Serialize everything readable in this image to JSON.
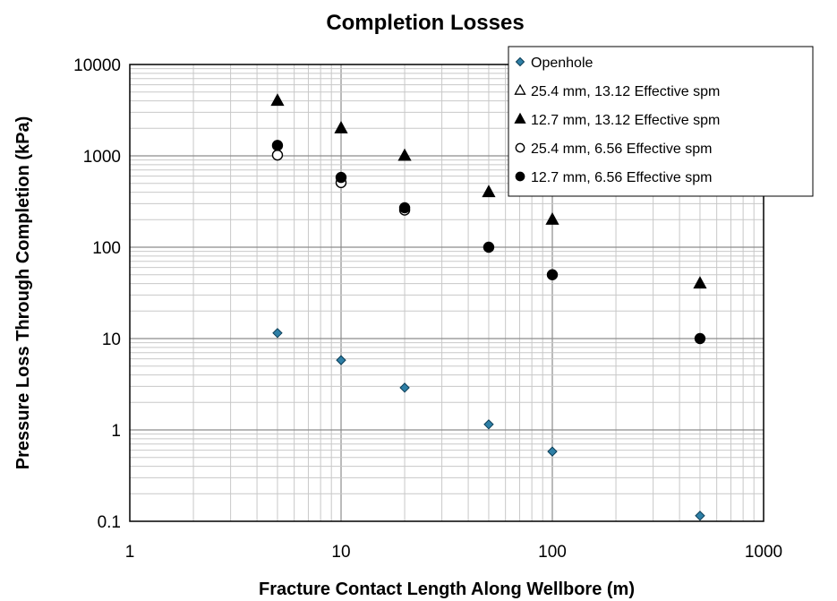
{
  "chart_data": {
    "type": "scatter",
    "title": "Completion Losses",
    "xlabel": "Fracture Contact Length Along Wellbore (m)",
    "ylabel": "Pressure Loss Through Completion (kPa)",
    "x_scale": "log",
    "y_scale": "log",
    "xlim": [
      1,
      1000
    ],
    "ylim": [
      0.1,
      10000
    ],
    "x_ticks": [
      "1",
      "10",
      "100",
      "1000"
    ],
    "y_ticks": [
      "0.1",
      "1",
      "10",
      "100",
      "1000",
      "10000"
    ],
    "grid": true,
    "legend_position": "top-right",
    "series": [
      {
        "name": "Openhole",
        "marker": "diamond",
        "color": "#2e7fa6",
        "x": [
          5,
          10,
          20,
          50,
          100,
          500
        ],
        "y": [
          11.5,
          5.8,
          2.9,
          1.15,
          0.58,
          0.115
        ]
      },
      {
        "name": "25.4 mm, 13.12 Effective spm",
        "marker": "triangle-open",
        "color": "#000000",
        "x": [],
        "y": []
      },
      {
        "name": "12.7 mm, 13.12 Effective spm",
        "marker": "triangle-filled",
        "color": "#000000",
        "x": [
          5,
          10,
          20,
          50,
          100,
          500
        ],
        "y": [
          4000,
          2000,
          1000,
          400,
          200,
          40
        ]
      },
      {
        "name": "25.4 mm, 6.56 Effective spm",
        "marker": "circle-open",
        "color": "#000000",
        "x": [
          5,
          10,
          20
        ],
        "y": [
          1020,
          510,
          255
        ]
      },
      {
        "name": "12.7 mm, 6.56 Effective spm",
        "marker": "circle-filled",
        "color": "#000000",
        "x": [
          5,
          10,
          20,
          50,
          100,
          500
        ],
        "y": [
          1300,
          580,
          270,
          100,
          50,
          10
        ]
      }
    ]
  }
}
